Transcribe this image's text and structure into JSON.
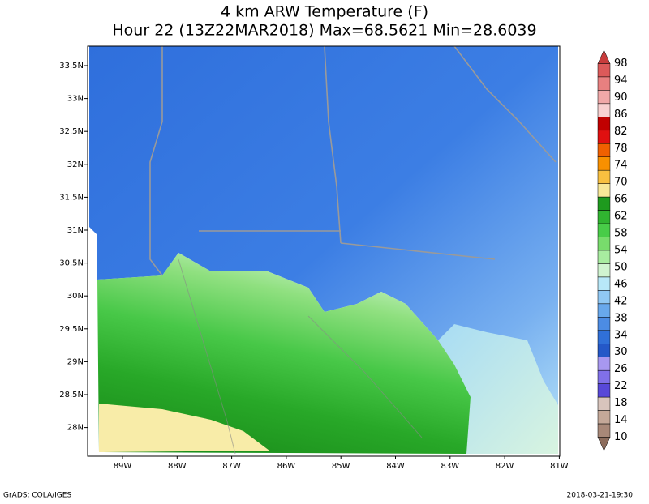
{
  "header": {
    "title": "4 km ARW Temperature (F)",
    "subtitle": "Hour 22 (13Z22MAR2018) Max=68.5621 Min=28.6039"
  },
  "map": {
    "lat_labels": [
      "33.5N",
      "33N",
      "32.5N",
      "32N",
      "31.5N",
      "31N",
      "30.5N",
      "30N",
      "29.5N",
      "29N",
      "28.5N",
      "28N"
    ],
    "lon_labels": [
      "89W",
      "88W",
      "87W",
      "86W",
      "85W",
      "84W",
      "83W",
      "82W",
      "81W"
    ]
  },
  "colorbar": {
    "labels": [
      98,
      94,
      90,
      86,
      82,
      78,
      74,
      70,
      66,
      62,
      58,
      54,
      50,
      46,
      42,
      38,
      34,
      30,
      26,
      22,
      18,
      14,
      10
    ],
    "colors": [
      "#c83c3c",
      "#dc5a5a",
      "#e88080",
      "#f0a8a8",
      "#f8d0d0",
      "#c00000",
      "#e01010",
      "#f06000",
      "#f89000",
      "#f8c040",
      "#f8e898",
      "#1e9a1e",
      "#30b430",
      "#48cc48",
      "#78dc6c",
      "#a8eca0",
      "#d0f4d0",
      "#b8e8f8",
      "#90c8f4",
      "#68a8ec",
      "#4c8ce4",
      "#3070d8",
      "#2458c8",
      "#a898f0",
      "#8070e8",
      "#5848d8",
      "#d8c4bc",
      "#c4a898",
      "#a88878",
      "#8c6c5c"
    ]
  },
  "footer": {
    "left": "GrADS: COLA/IGES",
    "right": "2018-03-21-19:30"
  }
}
